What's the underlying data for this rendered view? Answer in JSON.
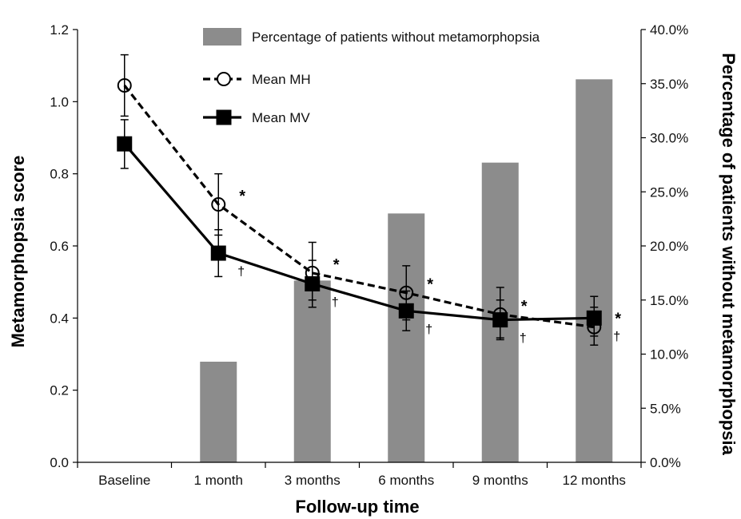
{
  "chart_data": {
    "type": "bar+line",
    "categories": [
      "Baseline",
      "1 month",
      "3 months",
      "6 months",
      "9 months",
      "12 months"
    ],
    "xlabel": "Follow-up time",
    "ylabel_left": "Metamorphopsia score",
    "ylabel_right": "Percentage of patients without metamorphopsia",
    "ylim_left": [
      0,
      1.2
    ],
    "ylim_right": [
      0,
      40
    ],
    "yticks_left": [
      "0.0",
      "0.2",
      "0.4",
      "0.6",
      "0.8",
      "1.0",
      "1.2"
    ],
    "yticks_right": [
      "0.0%",
      "5.0%",
      "10.0%",
      "15.0%",
      "20.0%",
      "25.0%",
      "30.0%",
      "35.0%",
      "40.0%"
    ],
    "bars": {
      "name": "Percentage of patients without metamorphopsia",
      "axis": "right",
      "color": "#8c8c8c",
      "values": [
        0,
        9.3,
        16.8,
        23.0,
        27.7,
        35.4
      ]
    },
    "series": [
      {
        "name": "Mean MH",
        "axis": "left",
        "line": "dashed",
        "marker": "open-circle",
        "values": [
          1.045,
          0.715,
          0.525,
          0.47,
          0.41,
          0.375
        ],
        "err_low": [
          0.96,
          0.63,
          0.45,
          0.395,
          0.345,
          0.325
        ],
        "err_high": [
          1.13,
          0.8,
          0.61,
          0.545,
          0.485,
          0.43
        ],
        "significance": [
          "",
          "*",
          "*",
          "*",
          "*",
          "*"
        ]
      },
      {
        "name": "Mean MV",
        "axis": "left",
        "line": "solid",
        "marker": "filled-square",
        "values": [
          0.883,
          0.58,
          0.495,
          0.42,
          0.395,
          0.4
        ],
        "err_low": [
          0.815,
          0.515,
          0.43,
          0.365,
          0.34,
          0.35
        ],
        "err_high": [
          0.95,
          0.645,
          0.56,
          0.475,
          0.45,
          0.46
        ],
        "significance": [
          "",
          "†",
          "†",
          "†",
          "†",
          "†"
        ]
      }
    ],
    "legend_position": "top-center",
    "grid": false
  }
}
